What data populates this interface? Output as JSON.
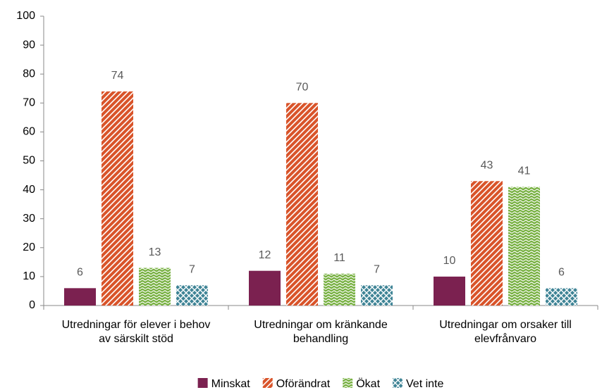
{
  "chart_data": {
    "type": "bar",
    "categories": [
      "Utredningar för elever i behov\nav särskilt stöd",
      "Utredningar om kränkande\nbehandling",
      "Utredningar om orsaker till\nelevfrånvaro"
    ],
    "series": [
      {
        "name": "Minskat",
        "color": "#7b2150",
        "pattern": "solid",
        "values": [
          6,
          12,
          10
        ]
      },
      {
        "name": "Oförändrat",
        "color": "#d9542a",
        "pattern": "stripes",
        "values": [
          74,
          70,
          43
        ]
      },
      {
        "name": "Ökat",
        "color": "#77b041",
        "pattern": "waves",
        "values": [
          13,
          11,
          41
        ]
      },
      {
        "name": "Vet inte",
        "color": "#3f8496",
        "pattern": "lattice",
        "values": [
          7,
          7,
          6
        ]
      }
    ],
    "ylim": [
      0,
      100
    ],
    "yticks": [
      0,
      10,
      20,
      30,
      40,
      50,
      60,
      70,
      80,
      90,
      100
    ],
    "grid": false,
    "legend": "bottom"
  }
}
